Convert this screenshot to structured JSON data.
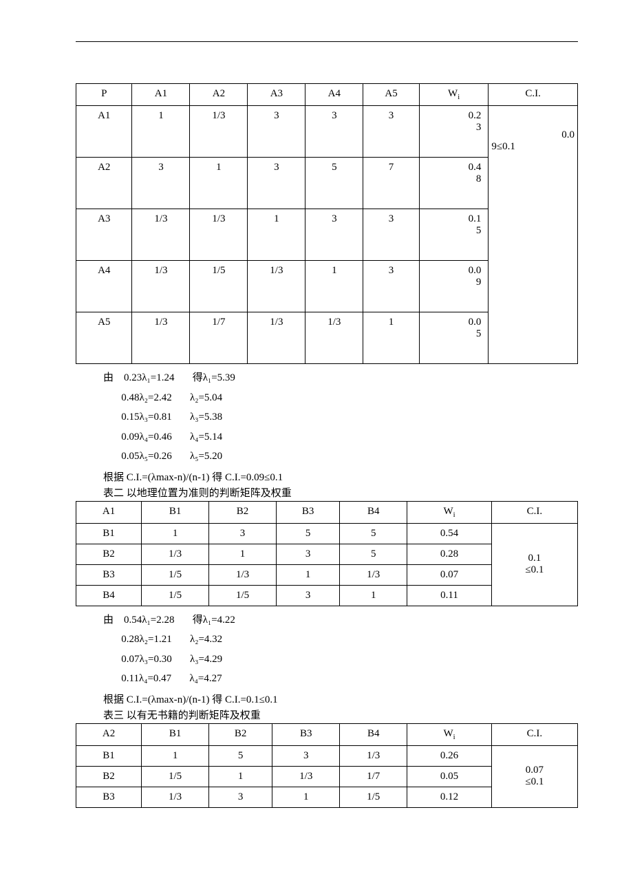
{
  "table1": {
    "headers": [
      "P",
      "A1",
      "A2",
      "A3",
      "A4",
      "A5",
      "W",
      "C.I."
    ],
    "rows": [
      {
        "label": "A1",
        "cells": [
          "1",
          "1/3",
          "3",
          "3",
          "3"
        ],
        "wi": "0.23"
      },
      {
        "label": "A2",
        "cells": [
          "3",
          "1",
          "3",
          "5",
          "7"
        ],
        "wi": "0.48"
      },
      {
        "label": "A3",
        "cells": [
          "1/3",
          "1/3",
          "1",
          "3",
          "3"
        ],
        "wi": "0.15"
      },
      {
        "label": "A4",
        "cells": [
          "1/3",
          "1/5",
          "1/3",
          "1",
          "3"
        ],
        "wi": "0.09"
      },
      {
        "label": "A5",
        "cells": [
          "1/3",
          "1/7",
          "1/3",
          "1/3",
          "1"
        ],
        "wi": "0.05"
      }
    ],
    "ci": "0.09≤0.1"
  },
  "calc1": {
    "prefix": "由",
    "lines": [
      {
        "left": "0.23λ₁=1.24",
        "right": "得λ₁=5.39"
      },
      {
        "left": "0.48λ₂=2.42",
        "right": "λ₂=5.04"
      },
      {
        "left": "0.15λ₃=0.81",
        "right": "λ₃=5.38"
      },
      {
        "left": "0.09λ₄=0.46",
        "right": "λ₄=5.14"
      },
      {
        "left": "0.05λ₅=0.26",
        "right": "λ₅=5.20"
      }
    ],
    "footer": "根据 C.I.=(λmax-n)/(n-1)  得  C.I.=0.09≤0.1"
  },
  "caption2": "表二 以地理位置为准则的判断矩阵及权重",
  "table2": {
    "headers": [
      "A1",
      "B1",
      "B2",
      "B3",
      "B4",
      "W",
      "C.I."
    ],
    "rows": [
      {
        "label": "B1",
        "cells": [
          "1",
          "3",
          "5",
          "5"
        ],
        "wi": "0.54"
      },
      {
        "label": "B2",
        "cells": [
          "1/3",
          "1",
          "3",
          "5"
        ],
        "wi": "0.28"
      },
      {
        "label": "B3",
        "cells": [
          "1/5",
          "1/3",
          "1",
          "1/3"
        ],
        "wi": "0.07"
      },
      {
        "label": "B4",
        "cells": [
          "1/5",
          "1/5",
          "3",
          "1"
        ],
        "wi": "0.11"
      }
    ],
    "ci": "0.1\n≤0.1"
  },
  "calc2": {
    "prefix": "由",
    "lines": [
      {
        "left": "0.54λ₁=2.28",
        "right": "得λ₁=4.22"
      },
      {
        "left": "0.28λ₂=1.21",
        "right": "λ₂=4.32"
      },
      {
        "left": "0.07λ₃=0.30",
        "right": "λ₃=4.29"
      },
      {
        "left": "0.11λ₄=0.47",
        "right": "λ₄=4.27"
      }
    ],
    "footer": "根据 C.I.=(λmax-n)/(n-1)  得  C.I.=0.1≤0.1"
  },
  "caption3": "表三 以有无书籍的判断矩阵及权重",
  "table3": {
    "headers": [
      "A2",
      "B1",
      "B2",
      "B3",
      "B4",
      "W",
      "C.I."
    ],
    "rows": [
      {
        "label": "B1",
        "cells": [
          "1",
          "5",
          "3",
          "1/3"
        ],
        "wi": "0.26"
      },
      {
        "label": "B2",
        "cells": [
          "1/5",
          "1",
          "1/3",
          "1/7"
        ],
        "wi": "0.05"
      },
      {
        "label": "B3",
        "cells": [
          "1/3",
          "3",
          "1",
          "1/5"
        ],
        "wi": "0.12"
      }
    ],
    "ci": "0.07\n≤0.1"
  }
}
